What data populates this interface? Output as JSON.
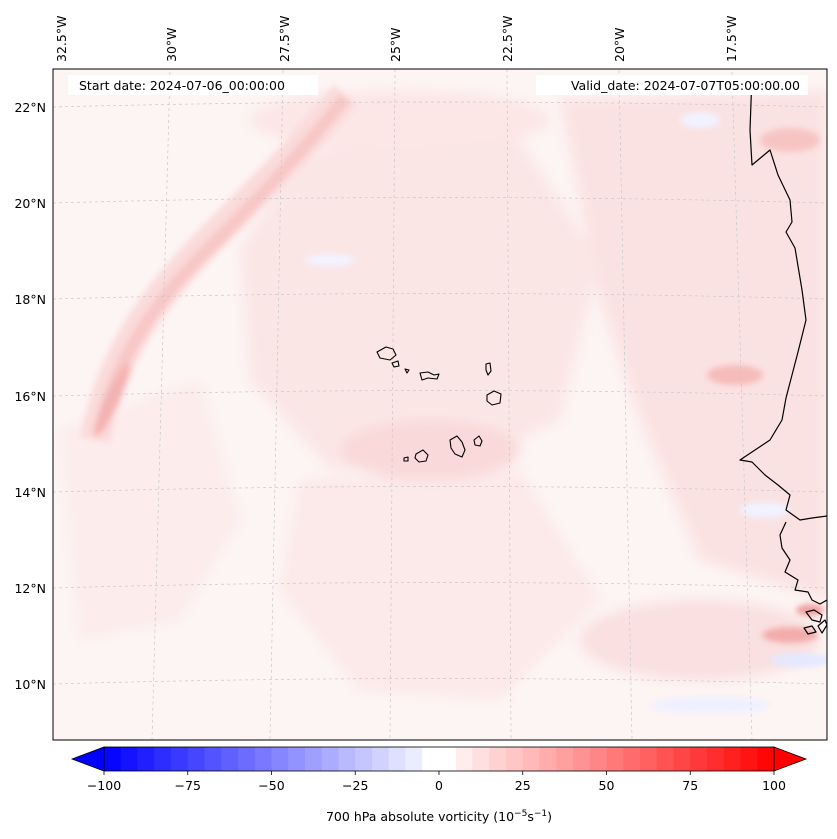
{
  "map": {
    "start_label": "Start date: 2024-07-06_00:00:00",
    "valid_label": "Valid_date: 2024-07-07T05:00:00.00",
    "field": "700 hPa absolute vorticity",
    "lon_ticks": [
      "32.5°W",
      "30°W",
      "27.5°W",
      "25°W",
      "22.5°W",
      "20°W",
      "17.5°W"
    ],
    "lat_ticks": [
      "22°N",
      "20°N",
      "18°N",
      "16°N",
      "14°N",
      "12°N",
      "10°N"
    ],
    "colors": {
      "negative_max": "#0000ff",
      "neutral": "#ffffff",
      "positive_max": "#ff0000",
      "background_tint": "#fdf4f4",
      "coastline": "#000000",
      "gridline": "#c8c8c8"
    }
  },
  "colorbar": {
    "label_main": "700 hPa absolute vorticity (10",
    "label_exp1": "−5",
    "label_mid": "s",
    "label_exp2": "−1",
    "label_end": ")",
    "min": -100,
    "max": 100,
    "levels": 40,
    "tick_values": [
      -100,
      -75,
      -50,
      -25,
      0,
      25,
      50,
      75,
      100
    ],
    "tick_labels": [
      "−100",
      "−75",
      "−50",
      "−25",
      "0",
      "25",
      "50",
      "75",
      "100"
    ]
  },
  "islands": [
    "santo-antao",
    "sao-vicente",
    "santa-luzia",
    "sao-nicolau",
    "sal",
    "boa-vista",
    "brava",
    "fogo",
    "santiago",
    "maio"
  ]
}
